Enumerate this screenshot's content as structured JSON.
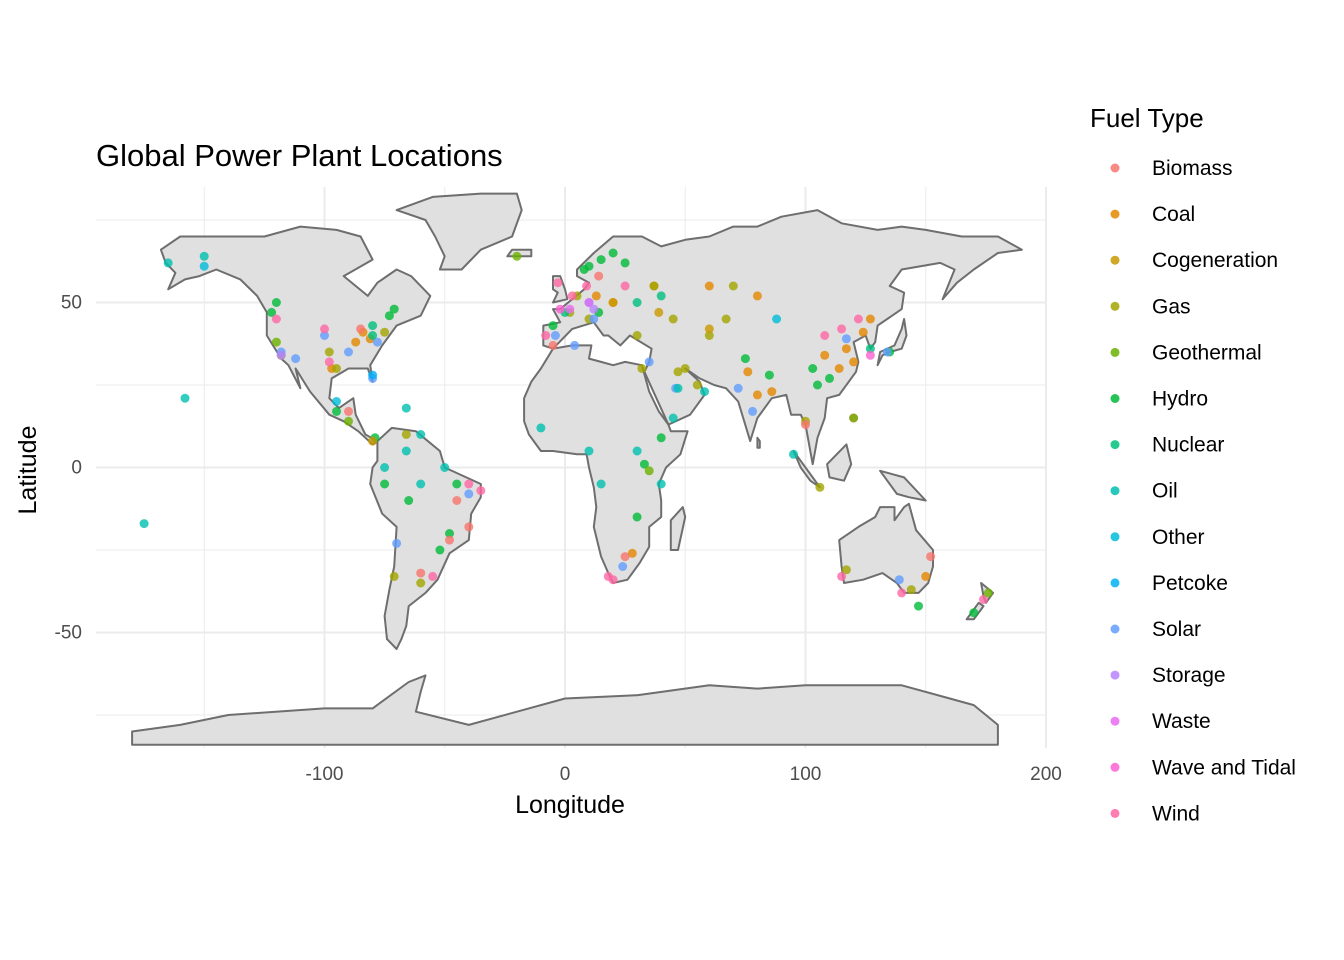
{
  "chart_data": {
    "type": "scatter",
    "title": "Global Power Plant Locations",
    "xlabel": "Longitude",
    "ylabel": "Latitude",
    "xlim": [
      -195,
      200
    ],
    "ylim": [
      -85,
      85
    ],
    "x_ticks": [
      {
        "value": -100,
        "label": "-100"
      },
      {
        "value": 0,
        "label": "0"
      },
      {
        "value": 100,
        "label": "100"
      },
      {
        "value": 200,
        "label": "200"
      }
    ],
    "y_ticks": [
      {
        "value": 50,
        "label": "50"
      },
      {
        "value": 0,
        "label": "0"
      },
      {
        "value": -50,
        "label": "-50"
      }
    ],
    "grid": true,
    "basemap": "world country outlines",
    "legend": {
      "title": "Fuel Type",
      "position": "right",
      "items": [
        {
          "label": "Biomass",
          "color": "#F8766D"
        },
        {
          "label": "Coal",
          "color": "#E58700"
        },
        {
          "label": "Cogeneration",
          "color": "#C99800"
        },
        {
          "label": "Gas",
          "color": "#A3A500"
        },
        {
          "label": "Geothermal",
          "color": "#6BB100"
        },
        {
          "label": "Hydro",
          "color": "#00BA38"
        },
        {
          "label": "Nuclear",
          "color": "#00BF7D"
        },
        {
          "label": "Oil",
          "color": "#00C0AF"
        },
        {
          "label": "Other",
          "color": "#00BCD8"
        },
        {
          "label": "Petcoke",
          "color": "#00B0F6"
        },
        {
          "label": "Solar",
          "color": "#619CFF"
        },
        {
          "label": "Storage",
          "color": "#B983FF"
        },
        {
          "label": "Waste",
          "color": "#E76BF3"
        },
        {
          "label": "Wave and Tidal",
          "color": "#FD61D1"
        },
        {
          "label": "Wind",
          "color": "#FF67A4"
        }
      ]
    },
    "series": [
      {
        "name": "Coal",
        "points": [
          [
            -81,
            39
          ],
          [
            -87,
            38
          ],
          [
            -84,
            41
          ],
          [
            -97,
            30
          ],
          [
            117,
            36
          ],
          [
            114,
            30
          ],
          [
            120,
            32
          ],
          [
            108,
            34
          ],
          [
            80,
            22
          ],
          [
            86,
            23
          ],
          [
            76,
            29
          ],
          [
            28,
            -26
          ],
          [
            150,
            -33
          ],
          [
            20,
            50
          ],
          [
            13,
            52
          ],
          [
            37,
            55
          ],
          [
            60,
            55
          ],
          [
            80,
            52
          ],
          [
            127,
            45
          ],
          [
            124,
            41
          ]
        ]
      },
      {
        "name": "Gas",
        "points": [
          [
            -95,
            30
          ],
          [
            -98,
            35
          ],
          [
            -118,
            34
          ],
          [
            -75,
            41
          ],
          [
            50,
            30
          ],
          [
            55,
            25
          ],
          [
            47,
            29
          ],
          [
            37,
            55
          ],
          [
            45,
            45
          ],
          [
            60,
            40
          ],
          [
            67,
            45
          ],
          [
            70,
            55
          ],
          [
            30,
            40
          ],
          [
            2,
            47
          ],
          [
            10,
            45
          ],
          [
            5,
            52
          ],
          [
            32,
            30
          ],
          [
            -66,
            10
          ],
          [
            100,
            14
          ],
          [
            106,
            -6
          ],
          [
            144,
            -37
          ],
          [
            117,
            -31
          ],
          [
            -71,
            -33
          ],
          [
            -60,
            -35
          ]
        ]
      },
      {
        "name": "Hydro",
        "points": [
          [
            10,
            61
          ],
          [
            15,
            63
          ],
          [
            20,
            65
          ],
          [
            25,
            62
          ],
          [
            8,
            60
          ],
          [
            14,
            47
          ],
          [
            -73,
            46
          ],
          [
            -122,
            47
          ],
          [
            -120,
            50
          ],
          [
            -71,
            48
          ],
          [
            103,
            30
          ],
          [
            105,
            25
          ],
          [
            110,
            27
          ],
          [
            85,
            28
          ],
          [
            75,
            33
          ],
          [
            -48,
            -20
          ],
          [
            -52,
            -25
          ],
          [
            -45,
            -5
          ],
          [
            -65,
            -10
          ],
          [
            -75,
            -5
          ],
          [
            33,
            1
          ],
          [
            30,
            -15
          ],
          [
            -79,
            9
          ],
          [
            40,
            9
          ],
          [
            135,
            35
          ],
          [
            170,
            -44
          ],
          [
            147,
            -42
          ],
          [
            -95,
            17
          ],
          [
            -5,
            43
          ]
        ]
      },
      {
        "name": "Solar",
        "points": [
          [
            -118,
            35
          ],
          [
            -112,
            33
          ],
          [
            -78,
            38
          ],
          [
            -100,
            40
          ],
          [
            10,
            50
          ],
          [
            12,
            45
          ],
          [
            -4,
            40
          ],
          [
            35,
            32
          ],
          [
            72,
            24
          ],
          [
            78,
            17
          ],
          [
            117,
            39
          ],
          [
            134,
            35
          ],
          [
            24,
            -30
          ],
          [
            -70,
            -23
          ],
          [
            139,
            -34
          ],
          [
            -40,
            -8
          ],
          [
            46,
            24
          ],
          [
            4,
            37
          ],
          [
            -90,
            35
          ],
          [
            -80,
            27
          ]
        ]
      },
      {
        "name": "Wind",
        "points": [
          [
            -100,
            42
          ],
          [
            -98,
            32
          ],
          [
            -120,
            45
          ],
          [
            9,
            55
          ],
          [
            -3,
            56
          ],
          [
            3,
            52
          ],
          [
            -8,
            40
          ],
          [
            115,
            42
          ],
          [
            108,
            40
          ],
          [
            122,
            45
          ],
          [
            140,
            -38
          ],
          [
            115,
            -33
          ],
          [
            174,
            -40
          ],
          [
            -40,
            -5
          ],
          [
            -55,
            -33
          ],
          [
            20,
            -34
          ],
          [
            18,
            -33
          ],
          [
            -35,
            -7
          ],
          [
            25,
            55
          ]
        ]
      },
      {
        "name": "Biomass",
        "points": [
          [
            -48,
            -22
          ],
          [
            -40,
            -18
          ],
          [
            -60,
            -32
          ],
          [
            -45,
            -10
          ],
          [
            25,
            -27
          ],
          [
            -85,
            42
          ],
          [
            14,
            58
          ],
          [
            -5,
            37
          ],
          [
            100,
            13
          ],
          [
            120,
            15
          ],
          [
            152,
            -27
          ],
          [
            -90,
            17
          ]
        ]
      },
      {
        "name": "Oil",
        "points": [
          [
            -158,
            21
          ],
          [
            -165,
            62
          ],
          [
            -150,
            64
          ],
          [
            -175,
            -17
          ],
          [
            -66,
            18
          ],
          [
            -66,
            5
          ],
          [
            -75,
            0
          ],
          [
            -50,
            0
          ],
          [
            -60,
            -5
          ],
          [
            10,
            5
          ],
          [
            30,
            5
          ],
          [
            -10,
            12
          ],
          [
            47,
            24
          ],
          [
            45,
            15
          ],
          [
            58,
            23
          ],
          [
            -60,
            10
          ],
          [
            15,
            -5
          ],
          [
            40,
            -5
          ],
          [
            95,
            4
          ]
        ]
      },
      {
        "name": "Nuclear",
        "points": [
          [
            -80,
            40
          ],
          [
            0,
            47
          ],
          [
            127,
            36
          ],
          [
            30,
            50
          ],
          [
            40,
            52
          ],
          [
            -80,
            43
          ]
        ]
      },
      {
        "name": "Geothermal",
        "points": [
          [
            -120,
            38
          ],
          [
            -90,
            14
          ],
          [
            120,
            15
          ],
          [
            35,
            -1
          ],
          [
            176,
            -38
          ],
          [
            -20,
            64
          ]
        ]
      },
      {
        "name": "Cogeneration",
        "points": [
          [
            20,
            50
          ],
          [
            39,
            47
          ],
          [
            60,
            42
          ],
          [
            -80,
            8
          ]
        ]
      },
      {
        "name": "Other",
        "points": [
          [
            -150,
            61
          ],
          [
            88,
            45
          ],
          [
            -95,
            20
          ]
        ]
      },
      {
        "name": "Petcoke",
        "points": [
          [
            -80,
            28
          ]
        ]
      },
      {
        "name": "Storage",
        "points": [
          [
            -118,
            34
          ],
          [
            12,
            48
          ]
        ]
      },
      {
        "name": "Waste",
        "points": [
          [
            10,
            50
          ],
          [
            2,
            48
          ]
        ]
      },
      {
        "name": "Wave and Tidal",
        "points": [
          [
            -2,
            48
          ],
          [
            127,
            34
          ]
        ]
      }
    ]
  }
}
